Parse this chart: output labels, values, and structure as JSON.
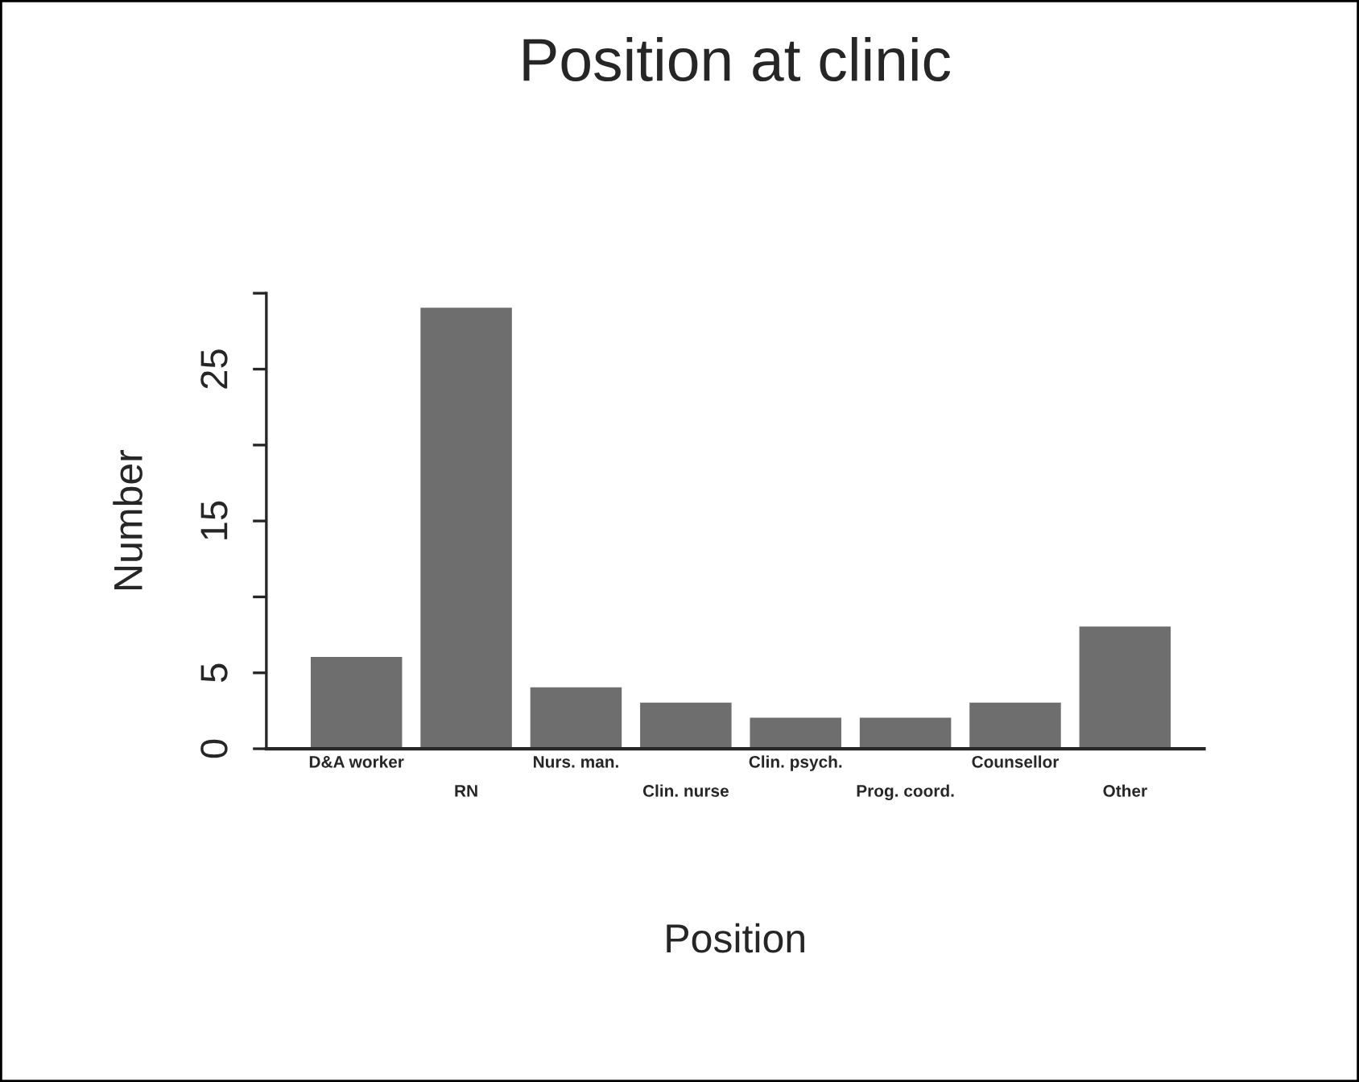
{
  "chart_data": {
    "type": "bar",
    "title": "Position at clinic",
    "xlabel": "Position",
    "ylabel": "Number",
    "categories": [
      "D&A worker",
      "RN",
      "Nurs. man.",
      "Clin. nurse",
      "Clin. psych.",
      "Prog. coord.",
      "Counsellor",
      "Other"
    ],
    "values": [
      6,
      29,
      4,
      3,
      2,
      2,
      3,
      8
    ],
    "color": "#6e6e6e",
    "ylim": [
      0,
      30
    ],
    "yticks": [
      0,
      5,
      {
        "value": 10,
        "label": null
      },
      15,
      {
        "value": 20,
        "label": null
      },
      25,
      {
        "value": 30,
        "label": null
      }
    ],
    "grid": false,
    "legend": false
  }
}
